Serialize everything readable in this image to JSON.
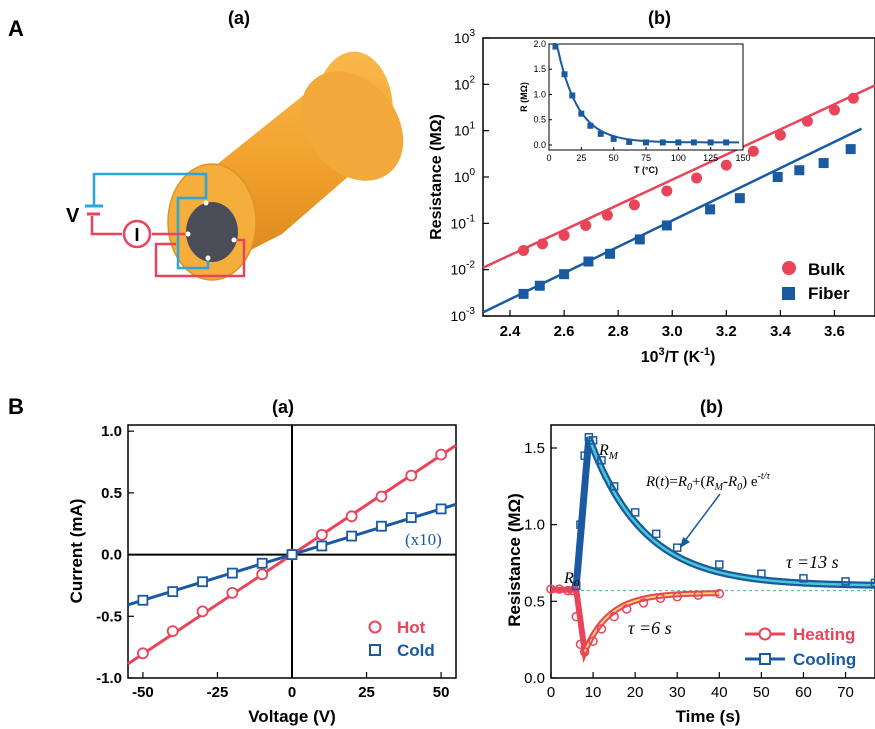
{
  "panel_labels": {
    "A": "A",
    "B": "B"
  },
  "subpanel_labels": {
    "Aa": "(a)",
    "Ab": "(b)",
    "Ba": "(a)",
    "Bb": "(b)"
  },
  "diagram": {
    "v_label": "V",
    "i_label": "I"
  },
  "colors": {
    "red": "#e8445a",
    "blue": "#1a5aa0",
    "light_blue": "#29a3d8",
    "orange": "#f4a433",
    "cyan_fit": "#48c8d0",
    "yellow_fit": "#f2d46a"
  },
  "chart_data": [
    {
      "id": "Ab",
      "type": "scatter",
      "xlabel": "10",
      "xlabel_sup": "3",
      "xlabel_tail": "/T (K",
      "xlabel_sup2": "-1",
      "xlabel_end": ")",
      "ylabel": "Resistance (MΩ)",
      "xlim": [
        2.3,
        3.75
      ],
      "ylim_log10": [
        -3,
        3
      ],
      "yscale": "log",
      "xticks": [
        2.4,
        2.6,
        2.8,
        3.0,
        3.2,
        3.4,
        3.6
      ],
      "xtick_labels": [
        "2.4",
        "2.6",
        "2.8",
        "3.0",
        "3.2",
        "3.4",
        "3.6"
      ],
      "ytick_exps": [
        -3,
        -2,
        -1,
        0,
        1,
        2,
        3
      ],
      "legend_position": "bottom-right",
      "series": [
        {
          "name": "Bulk",
          "marker": "circle",
          "color": "#e8445a",
          "x": [
            2.45,
            2.52,
            2.6,
            2.68,
            2.76,
            2.86,
            2.98,
            3.09,
            3.2,
            3.3,
            3.4,
            3.5,
            3.6,
            3.67
          ],
          "y": [
            0.026,
            0.036,
            0.055,
            0.09,
            0.15,
            0.25,
            0.5,
            0.95,
            1.8,
            3.6,
            8,
            16,
            28,
            50
          ],
          "fit": {
            "x": [
              2.3,
              3.75
            ],
            "y": [
              0.011,
              95
            ]
          }
        },
        {
          "name": "Fiber",
          "marker": "square",
          "color": "#1a5aa0",
          "x": [
            2.45,
            2.51,
            2.6,
            2.69,
            2.77,
            2.88,
            2.98,
            3.14,
            3.25,
            3.39,
            3.47,
            3.56,
            3.66
          ],
          "y": [
            0.003,
            0.0045,
            0.008,
            0.015,
            0.022,
            0.045,
            0.09,
            0.2,
            0.35,
            1.0,
            1.4,
            2.0,
            4.0
          ],
          "fit": {
            "x": [
              2.3,
              3.7
            ],
            "y": [
              0.0012,
              11
            ]
          }
        }
      ],
      "inset": {
        "xlabel": "T (°C)",
        "ylabel": "R (MΩ)",
        "xlim": [
          0,
          150
        ],
        "ylim": [
          -0.1,
          2.0
        ],
        "xticks": [
          0,
          25,
          50,
          75,
          100,
          125,
          150
        ],
        "yticks": [
          0.0,
          0.5,
          1.0,
          1.5,
          2.0
        ],
        "ytick_labels": [
          "0.0",
          "0.5",
          "1.0",
          "1.5",
          "2.0"
        ],
        "x": [
          5,
          12,
          18,
          25,
          32,
          40,
          50,
          62,
          75,
          88,
          100,
          112,
          125,
          137
        ],
        "y": [
          1.95,
          1.4,
          0.98,
          0.62,
          0.38,
          0.22,
          0.12,
          0.06,
          0.05,
          0.05,
          0.05,
          0.05,
          0.05,
          0.05
        ]
      }
    },
    {
      "id": "Ba",
      "type": "line",
      "xlabel": "Voltage (V)",
      "ylabel": "Current (mA)",
      "xlim": [
        -55,
        55
      ],
      "ylim": [
        -1.0,
        1.05
      ],
      "xticks": [
        -50,
        -25,
        0,
        25,
        50
      ],
      "yticks": [
        -1.0,
        -0.5,
        0.0,
        0.5,
        1.0
      ],
      "ytick_labels": [
        "-1.0",
        "-0.5",
        "0.0",
        "0.5",
        "1.0"
      ],
      "annotation": "(x10)",
      "legend_position": "bottom-right",
      "series": [
        {
          "name": "Hot",
          "marker": "circle-open",
          "color": "#e8445a",
          "x": [
            -50,
            -40,
            -30,
            -20,
            -10,
            0,
            10,
            20,
            30,
            40,
            50
          ],
          "y": [
            -0.8,
            -0.62,
            -0.46,
            -0.31,
            -0.16,
            0.0,
            0.16,
            0.31,
            0.47,
            0.64,
            0.81
          ]
        },
        {
          "name": "Cold",
          "marker": "square-open",
          "color": "#1a5aa0",
          "x": [
            -50,
            -40,
            -30,
            -20,
            -10,
            0,
            10,
            20,
            30,
            40,
            50
          ],
          "y": [
            -0.37,
            -0.3,
            -0.22,
            -0.15,
            -0.07,
            0.0,
            0.07,
            0.15,
            0.23,
            0.3,
            0.37
          ]
        }
      ]
    },
    {
      "id": "Bb",
      "type": "line",
      "xlabel": "Time (s)",
      "ylabel": "Resistance (MΩ)",
      "xlim": [
        0,
        77
      ],
      "ylim": [
        0.0,
        1.65
      ],
      "xticks": [
        0,
        10,
        20,
        30,
        40,
        50,
        60,
        70
      ],
      "yticks": [
        0.0,
        0.5,
        1.0,
        1.5
      ],
      "ytick_labels": [
        "0.0",
        "0.5",
        "1.0",
        "1.5"
      ],
      "r0_line": 0.57,
      "annotations": {
        "rm": "R",
        "rm_sub": "M",
        "r0": "R",
        "r0_sub": "0",
        "tau_hot": "τ =6 s",
        "tau_cold": "τ =13 s"
      },
      "equation": {
        "p1": "R",
        "p2": "(",
        "p3": "t",
        "p4": ")=",
        "p5": "R",
        "p6": "0",
        "p7": "+(",
        "p8": "R",
        "p9": "M",
        "p10": "-",
        "p11": "R",
        "p12": "0",
        "p13": ") e",
        "p14": "-t/τ"
      },
      "legend_position": "bottom-right",
      "series": [
        {
          "name": "Heating",
          "marker": "circle-open",
          "color": "#e8445a",
          "x": [
            0,
            2,
            4,
            5,
            6,
            7,
            8,
            10,
            12,
            15,
            18,
            22,
            26,
            30,
            35,
            40
          ],
          "y": [
            0.58,
            0.58,
            0.57,
            0.57,
            0.4,
            0.22,
            0.17,
            0.24,
            0.32,
            0.4,
            0.45,
            0.49,
            0.52,
            0.53,
            0.54,
            0.55
          ]
        },
        {
          "name": "Cooling",
          "marker": "square-open",
          "color": "#1a5aa0",
          "x": [
            6,
            7,
            8,
            9,
            10,
            12,
            15,
            20,
            25,
            30,
            40,
            50,
            60,
            70,
            77
          ],
          "y": [
            0.6,
            1.0,
            1.45,
            1.57,
            1.55,
            1.42,
            1.25,
            1.08,
            0.94,
            0.85,
            0.74,
            0.68,
            0.65,
            0.63,
            0.62
          ]
        }
      ]
    }
  ]
}
